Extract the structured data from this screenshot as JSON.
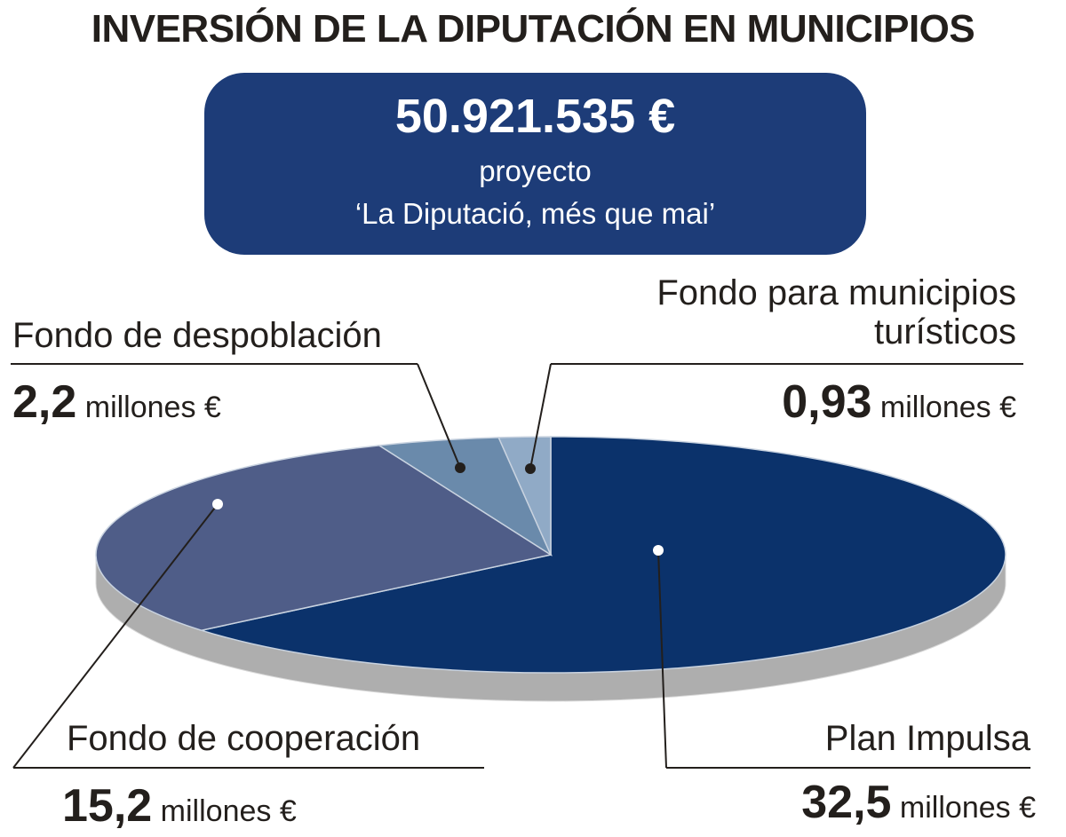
{
  "chart_data": {
    "type": "pie3d",
    "title": "INVERSIÓN DE LA DIPUTACIÓN EN MUNICIPIOS",
    "total_label": "50.921.535 €",
    "subtitle": "proyecto",
    "caption": "‘La Diputació, més que mai’",
    "unit": "millones €",
    "categories": [
      "Plan Impulsa",
      "Fondo de cooperación",
      "Fondo de despoblación",
      "Fondo para municipios turísticos"
    ],
    "values": [
      32.5,
      15.2,
      2.2,
      0.93
    ],
    "value_labels": [
      "32,5",
      "15,2",
      "2,2",
      "0,93"
    ],
    "colors": [
      "#0b326b",
      "#4f5d88",
      "#6a8aab",
      "#90aac6"
    ]
  }
}
